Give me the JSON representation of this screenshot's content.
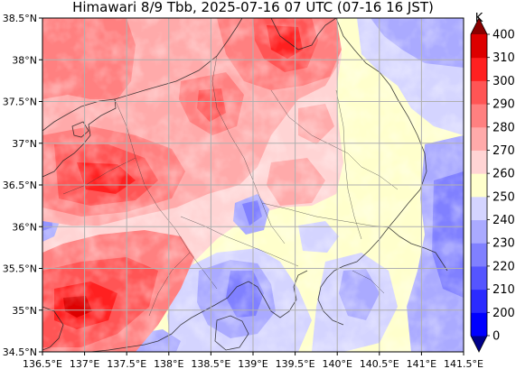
{
  "title": "Himawari 8/9 Tbb, 2025-07-16 07 UTC (07-16 16 JST)",
  "map": {
    "lon_range": [
      136.5,
      141.5
    ],
    "lat_range": [
      34.5,
      38.5
    ],
    "lon_ticks": [
      "136.5°E",
      "137°E",
      "137.5°E",
      "138°E",
      "138.5°E",
      "139°E",
      "139.5°E",
      "140°E",
      "140.5°E",
      "141°E",
      "141.5°E"
    ],
    "lat_ticks": [
      "38.5°N",
      "38°N",
      "37.5°N",
      "37°N",
      "36.5°N",
      "36°N",
      "35.5°N",
      "35°N",
      "34.5°N"
    ],
    "grid": true,
    "variable": "Brightness temperature (Tbb)"
  },
  "colorbar": {
    "unit": "K",
    "tick_labels": [
      "0",
      "200",
      "210",
      "220",
      "230",
      "240",
      "250",
      "260",
      "270",
      "280",
      "290",
      "300",
      "310",
      "400"
    ],
    "levels": [
      0,
      200,
      210,
      220,
      230,
      240,
      250,
      260,
      270,
      280,
      290,
      300,
      310,
      400
    ],
    "colors": [
      "#00008b",
      "#0000ff",
      "#2b2bff",
      "#5555ff",
      "#8080ff",
      "#aaaaff",
      "#d4d4ff",
      "#ffffcc",
      "#ffd4d4",
      "#ffaaaa",
      "#ff8080",
      "#ff5555",
      "#ff2020",
      "#dd0000",
      "#8b0000"
    ]
  }
}
